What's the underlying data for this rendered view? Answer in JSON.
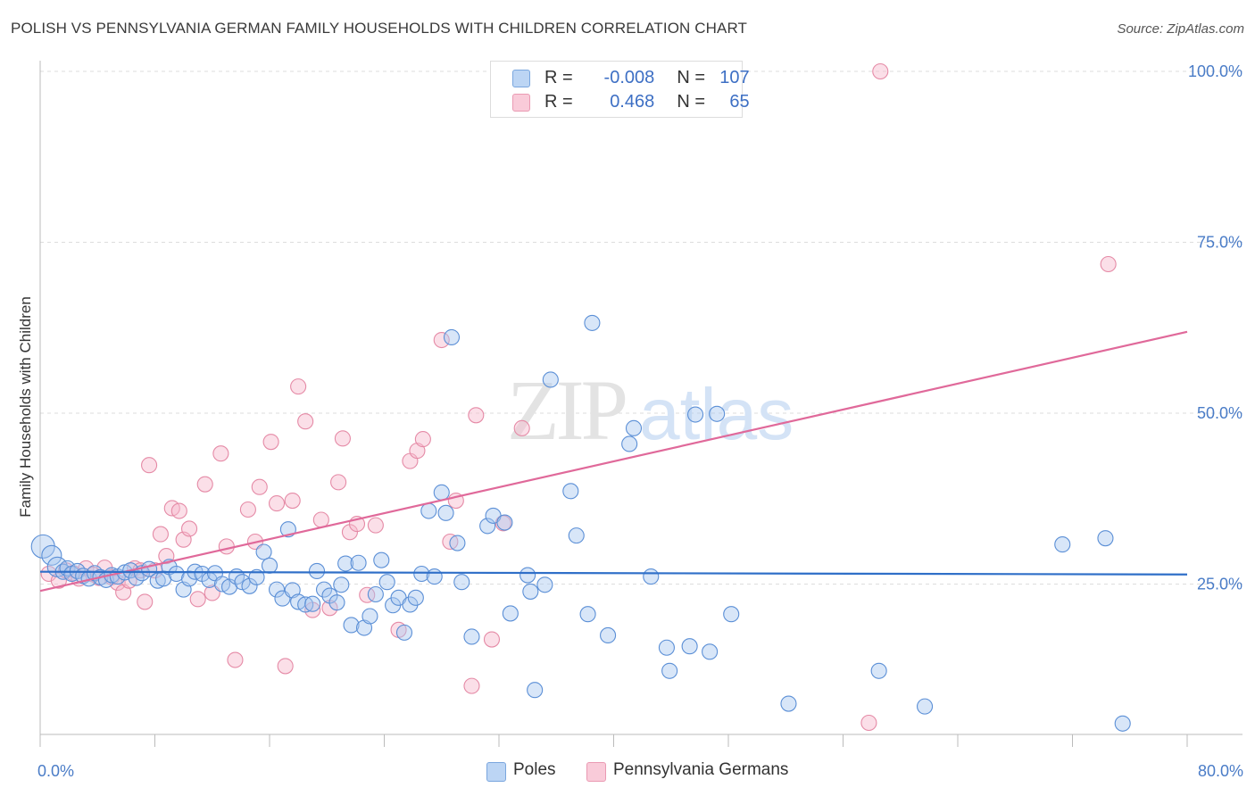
{
  "header": {
    "title": "POLISH VS PENNSYLVANIA GERMAN FAMILY HOUSEHOLDS WITH CHILDREN CORRELATION CHART",
    "source": "Source: ZipAtlas.com"
  },
  "watermark": {
    "zip": "ZIP",
    "atlas": "atlas"
  },
  "legend": {
    "r_label": "R =",
    "n_label": "N =",
    "rows": [
      {
        "r": "-0.008",
        "n": "107",
        "color": "#a9c8f0"
      },
      {
        "r": "0.468",
        "n": "65",
        "color": "#f6b8cb"
      }
    ]
  },
  "colors": {
    "poles_fill": "#a9c8f0",
    "poles_stroke": "#5b8fd6",
    "poles_line": "#2f6fc8",
    "pg_fill": "#f6b8cb",
    "pg_stroke": "#e58aa6",
    "pg_line": "#e0699a",
    "grid": "#dddddd",
    "tick_text": "#4a7cc7"
  },
  "chart_data": {
    "type": "scatter",
    "title": "POLISH VS PENNSYLVANIA GERMAN FAMILY HOUSEHOLDS WITH CHILDREN CORRELATION CHART",
    "xlabel": "",
    "ylabel": "Family Households with Children",
    "xlim": [
      0,
      80
    ],
    "ylim": [
      0,
      105
    ],
    "x_tick_labels": [
      "0.0%",
      "80.0%"
    ],
    "y_ticks": [
      25,
      50,
      75,
      100
    ],
    "y_tick_labels": [
      "25.0%",
      "50.0%",
      "75.0%",
      "100.0%"
    ],
    "grid": true,
    "legend_placement": "top-center",
    "series": [
      {
        "name": "Poles",
        "r": -0.008,
        "n": 107,
        "trend": [
          [
            0,
            26.8
          ],
          [
            80,
            26.4
          ]
        ],
        "points": [
          [
            0.2,
            30.5
          ],
          [
            0.8,
            29.2
          ],
          [
            1.2,
            27.5
          ],
          [
            1.6,
            26.8
          ],
          [
            1.9,
            27.3
          ],
          [
            2.2,
            26.5
          ],
          [
            2.6,
            26.9
          ],
          [
            3.0,
            26.2
          ],
          [
            3.4,
            25.8
          ],
          [
            3.8,
            26.6
          ],
          [
            4.2,
            26.0
          ],
          [
            4.6,
            25.6
          ],
          [
            5.0,
            26.3
          ],
          [
            5.4,
            26.1
          ],
          [
            5.9,
            26.7
          ],
          [
            6.3,
            27.0
          ],
          [
            6.7,
            25.9
          ],
          [
            7.1,
            26.6
          ],
          [
            7.6,
            27.2
          ],
          [
            8.2,
            25.5
          ],
          [
            8.6,
            25.8
          ],
          [
            9.0,
            27.5
          ],
          [
            9.5,
            26.5
          ],
          [
            10.0,
            24.2
          ],
          [
            10.4,
            25.8
          ],
          [
            10.8,
            26.8
          ],
          [
            11.3,
            26.5
          ],
          [
            11.8,
            25.6
          ],
          [
            12.2,
            26.6
          ],
          [
            12.7,
            25.0
          ],
          [
            13.2,
            24.6
          ],
          [
            13.7,
            26.1
          ],
          [
            14.1,
            25.3
          ],
          [
            14.6,
            24.7
          ],
          [
            15.1,
            26.0
          ],
          [
            15.6,
            29.7
          ],
          [
            16.0,
            27.7
          ],
          [
            16.5,
            24.2
          ],
          [
            16.9,
            22.9
          ],
          [
            17.3,
            33.0
          ],
          [
            17.6,
            24.1
          ],
          [
            18.0,
            22.4
          ],
          [
            18.5,
            22.0
          ],
          [
            19.0,
            22.1
          ],
          [
            19.3,
            26.9
          ],
          [
            19.8,
            24.2
          ],
          [
            20.2,
            23.3
          ],
          [
            20.7,
            22.3
          ],
          [
            21.0,
            24.9
          ],
          [
            21.3,
            28.0
          ],
          [
            21.7,
            19.0
          ],
          [
            22.2,
            28.1
          ],
          [
            22.6,
            18.6
          ],
          [
            23.0,
            20.3
          ],
          [
            23.4,
            23.5
          ],
          [
            23.8,
            28.5
          ],
          [
            24.2,
            25.3
          ],
          [
            24.6,
            21.9
          ],
          [
            25.0,
            23.0
          ],
          [
            25.4,
            17.9
          ],
          [
            25.8,
            22.0
          ],
          [
            26.2,
            23.0
          ],
          [
            26.6,
            26.5
          ],
          [
            27.1,
            35.7
          ],
          [
            27.5,
            26.1
          ],
          [
            28.0,
            38.4
          ],
          [
            28.3,
            35.4
          ],
          [
            28.7,
            61.1
          ],
          [
            29.1,
            31.0
          ],
          [
            29.4,
            25.3
          ],
          [
            30.1,
            17.3
          ],
          [
            31.2,
            33.5
          ],
          [
            31.6,
            35.0
          ],
          [
            32.4,
            34.0
          ],
          [
            32.8,
            20.7
          ],
          [
            34.0,
            26.3
          ],
          [
            34.2,
            23.9
          ],
          [
            34.5,
            9.5
          ],
          [
            35.2,
            24.9
          ],
          [
            35.6,
            54.9
          ],
          [
            37.0,
            38.6
          ],
          [
            37.4,
            32.1
          ],
          [
            38.2,
            20.6
          ],
          [
            38.5,
            63.2
          ],
          [
            39.6,
            17.5
          ],
          [
            41.1,
            45.5
          ],
          [
            41.4,
            47.8
          ],
          [
            42.6,
            26.1
          ],
          [
            43.7,
            15.7
          ],
          [
            43.9,
            12.3
          ],
          [
            45.3,
            15.9
          ],
          [
            45.7,
            49.8
          ],
          [
            46.7,
            15.1
          ],
          [
            47.2,
            49.9
          ],
          [
            48.2,
            20.6
          ],
          [
            52.2,
            7.5
          ],
          [
            58.5,
            12.3
          ],
          [
            61.7,
            7.1
          ],
          [
            71.3,
            30.8
          ],
          [
            74.3,
            31.7
          ],
          [
            75.5,
            4.6
          ]
        ]
      },
      {
        "name": "Pennsylvania Germans",
        "r": 0.468,
        "n": 65,
        "trend": [
          [
            0,
            24.0
          ],
          [
            80,
            61.9
          ]
        ],
        "points": [
          [
            0.6,
            26.5
          ],
          [
            1.3,
            25.5
          ],
          [
            1.8,
            27.0
          ],
          [
            2.3,
            26.6
          ],
          [
            2.7,
            25.8
          ],
          [
            3.2,
            27.3
          ],
          [
            3.7,
            26.4
          ],
          [
            4.1,
            25.9
          ],
          [
            4.5,
            27.4
          ],
          [
            5.0,
            26.0
          ],
          [
            5.4,
            25.2
          ],
          [
            5.8,
            23.8
          ],
          [
            6.2,
            25.5
          ],
          [
            6.6,
            27.3
          ],
          [
            7.0,
            27.0
          ],
          [
            7.3,
            22.4
          ],
          [
            7.6,
            42.4
          ],
          [
            8.0,
            27.0
          ],
          [
            8.4,
            32.3
          ],
          [
            8.8,
            29.1
          ],
          [
            9.2,
            36.1
          ],
          [
            9.7,
            35.7
          ],
          [
            10.0,
            31.5
          ],
          [
            10.4,
            33.1
          ],
          [
            11.0,
            22.8
          ],
          [
            11.5,
            39.6
          ],
          [
            12.0,
            23.7
          ],
          [
            12.6,
            44.1
          ],
          [
            13.0,
            30.5
          ],
          [
            13.6,
            13.9
          ],
          [
            14.5,
            35.9
          ],
          [
            15.0,
            31.2
          ],
          [
            15.3,
            39.2
          ],
          [
            16.1,
            45.8
          ],
          [
            16.5,
            36.8
          ],
          [
            17.1,
            13.0
          ],
          [
            17.6,
            37.2
          ],
          [
            18.0,
            53.9
          ],
          [
            18.5,
            48.8
          ],
          [
            19.0,
            21.2
          ],
          [
            19.6,
            34.4
          ],
          [
            20.2,
            21.5
          ],
          [
            20.8,
            39.9
          ],
          [
            21.1,
            46.3
          ],
          [
            21.6,
            32.6
          ],
          [
            22.1,
            33.8
          ],
          [
            22.8,
            23.4
          ],
          [
            23.4,
            33.6
          ],
          [
            25.0,
            18.3
          ],
          [
            25.8,
            43.0
          ],
          [
            26.3,
            44.5
          ],
          [
            26.7,
            46.2
          ],
          [
            28.0,
            60.7
          ],
          [
            28.6,
            31.2
          ],
          [
            29.0,
            37.2
          ],
          [
            30.1,
            10.1
          ],
          [
            30.4,
            49.7
          ],
          [
            31.5,
            16.9
          ],
          [
            32.3,
            33.9
          ],
          [
            33.6,
            47.8
          ],
          [
            57.8,
            4.7
          ],
          [
            58.6,
            100.0
          ],
          [
            74.5,
            71.8
          ]
        ]
      }
    ]
  }
}
